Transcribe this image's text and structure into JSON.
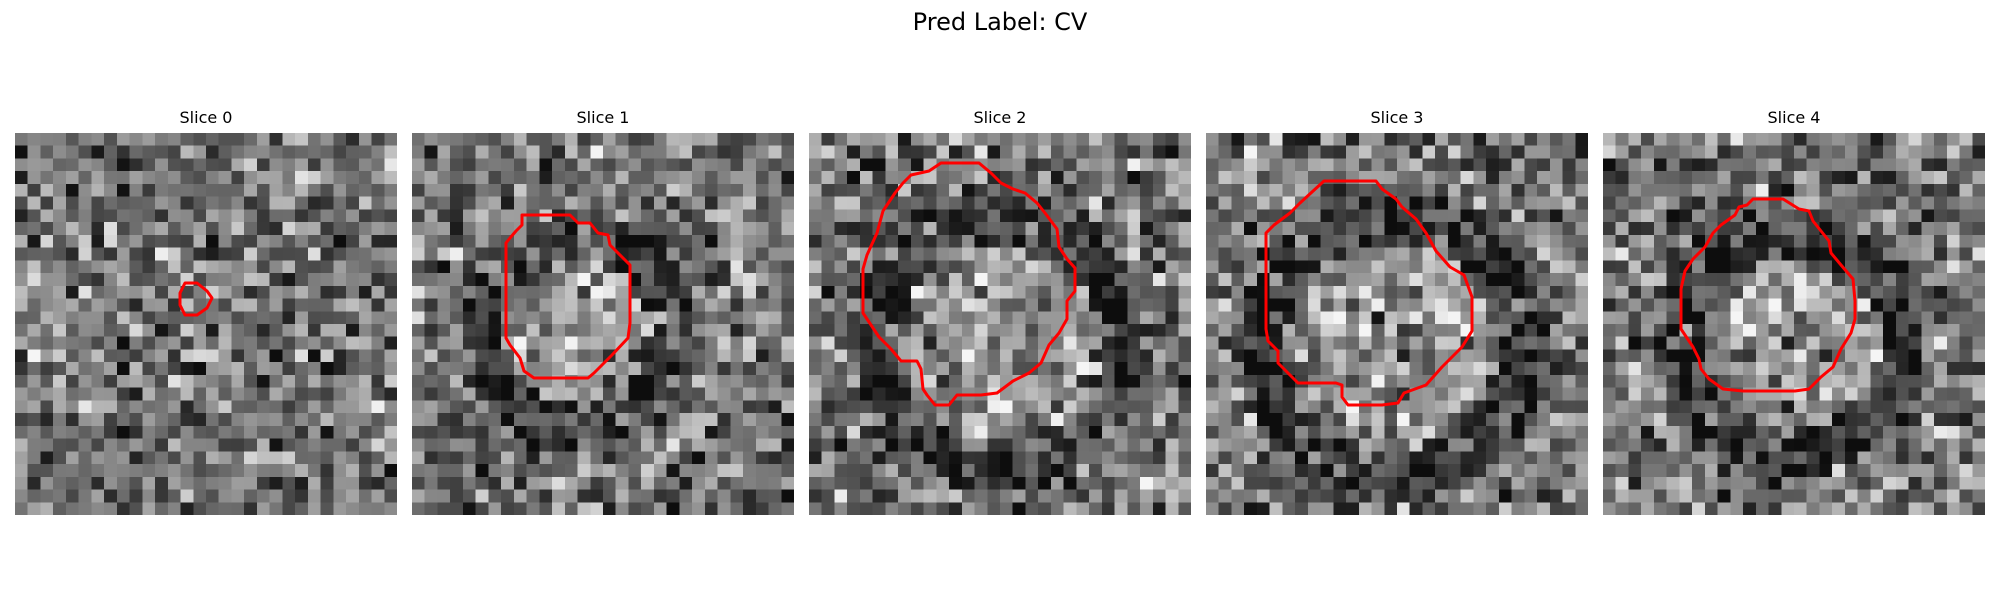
{
  "figure": {
    "title": "Pred Label: CV"
  },
  "panels": [
    {
      "title": "Slice 0",
      "contour_color": "#ff0000"
    },
    {
      "title": "Slice 1",
      "contour_color": "#ff0000"
    },
    {
      "title": "Slice 2",
      "contour_color": "#ff0000"
    },
    {
      "title": "Slice 3",
      "contour_color": "#ff0000"
    },
    {
      "title": "Slice 4",
      "contour_color": "#ff0000"
    }
  ]
}
